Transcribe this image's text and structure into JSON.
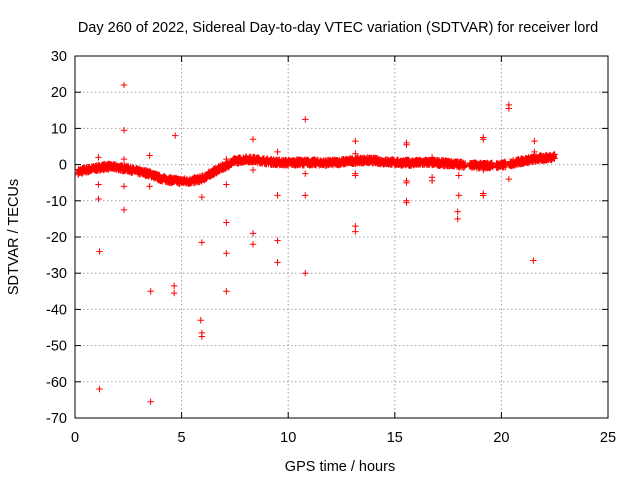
{
  "chart_data": {
    "type": "scatter",
    "title": "Day 260 of 2022, Sidereal Day-to-day VTEC variation (SDTVAR) for receiver lord",
    "xlabel": "GPS time / hours",
    "ylabel": "SDTVAR / TECUs",
    "xlim": [
      0,
      25
    ],
    "ylim": [
      -70,
      30
    ],
    "xticks": [
      0,
      5,
      10,
      15,
      20,
      25
    ],
    "yticks": [
      -70,
      -60,
      -50,
      -40,
      -30,
      -20,
      -10,
      0,
      10,
      20,
      30
    ],
    "grid": true,
    "marker": "+",
    "color": "#ff0000",
    "series": [
      {
        "name": "SDTVAR",
        "trend": [
          [
            0.15,
            -2.0
          ],
          [
            0.5,
            -1.5
          ],
          [
            1.0,
            -1.0
          ],
          [
            1.5,
            -0.5
          ],
          [
            2.0,
            -0.8
          ],
          [
            2.5,
            -1.2
          ],
          [
            3.0,
            -2.0
          ],
          [
            3.5,
            -2.5
          ],
          [
            4.0,
            -3.8
          ],
          [
            4.5,
            -4.3
          ],
          [
            5.0,
            -4.6
          ],
          [
            5.5,
            -4.5
          ],
          [
            6.0,
            -3.8
          ],
          [
            6.5,
            -2.0
          ],
          [
            7.0,
            -0.5
          ],
          [
            7.5,
            1.0
          ],
          [
            8.0,
            1.5
          ],
          [
            8.5,
            1.3
          ],
          [
            9.0,
            0.9
          ],
          [
            9.5,
            0.6
          ],
          [
            10.0,
            0.5
          ],
          [
            10.5,
            0.6
          ],
          [
            11.0,
            0.6
          ],
          [
            11.5,
            0.5
          ],
          [
            12.0,
            0.5
          ],
          [
            12.5,
            0.7
          ],
          [
            13.0,
            1.0
          ],
          [
            13.5,
            1.2
          ],
          [
            14.0,
            1.1
          ],
          [
            14.5,
            0.8
          ],
          [
            15.0,
            0.6
          ],
          [
            15.5,
            0.5
          ],
          [
            16.0,
            0.5
          ],
          [
            16.5,
            0.6
          ],
          [
            17.0,
            0.5
          ],
          [
            17.5,
            0.3
          ],
          [
            18.0,
            0.1
          ],
          [
            18.5,
            -0.1
          ],
          [
            19.0,
            -0.3
          ],
          [
            19.5,
            -0.2
          ],
          [
            20.0,
            -0.2
          ],
          [
            20.5,
            0.4
          ],
          [
            21.0,
            1.0
          ],
          [
            21.5,
            1.5
          ],
          [
            22.0,
            1.8
          ],
          [
            22.5,
            2.2
          ]
        ],
        "gaps": [
          [
            18.3,
            18.5
          ],
          [
            19.6,
            19.75
          ],
          [
            20.2,
            20.35
          ]
        ],
        "outliers": [
          [
            1.1,
            2.0
          ],
          [
            1.1,
            -5.5
          ],
          [
            1.1,
            -9.5
          ],
          [
            1.15,
            -24.0
          ],
          [
            1.15,
            -62.0
          ],
          [
            2.3,
            22.0
          ],
          [
            2.3,
            9.5
          ],
          [
            2.3,
            1.5
          ],
          [
            2.3,
            -6.0
          ],
          [
            2.3,
            -12.5
          ],
          [
            3.5,
            2.5
          ],
          [
            3.5,
            -6.0
          ],
          [
            3.55,
            -35.0
          ],
          [
            3.55,
            -65.5
          ],
          [
            4.7,
            8.0
          ],
          [
            4.65,
            -33.5
          ],
          [
            4.65,
            -35.5
          ],
          [
            5.95,
            -9.0
          ],
          [
            5.95,
            -21.5
          ],
          [
            5.9,
            -43.0
          ],
          [
            5.95,
            -46.5
          ],
          [
            5.95,
            -47.5
          ],
          [
            7.1,
            1.5
          ],
          [
            7.1,
            -5.5
          ],
          [
            7.1,
            -16.0
          ],
          [
            7.1,
            -24.5
          ],
          [
            7.1,
            -35.0
          ],
          [
            8.35,
            7.0
          ],
          [
            8.35,
            -1.5
          ],
          [
            8.35,
            -19.0
          ],
          [
            8.35,
            -22.0
          ],
          [
            9.5,
            3.5
          ],
          [
            9.5,
            -8.5
          ],
          [
            9.5,
            -21.0
          ],
          [
            9.5,
            -27.0
          ],
          [
            10.8,
            12.5
          ],
          [
            10.8,
            -2.5
          ],
          [
            10.8,
            -8.5
          ],
          [
            10.8,
            -30.0
          ],
          [
            13.15,
            6.5
          ],
          [
            13.15,
            3.0
          ],
          [
            13.15,
            -2.5
          ],
          [
            13.15,
            -3.0
          ],
          [
            13.15,
            -17.0
          ],
          [
            13.15,
            -18.5
          ],
          [
            15.55,
            6.0
          ],
          [
            15.55,
            5.5
          ],
          [
            15.55,
            -4.5
          ],
          [
            15.55,
            -5.0
          ],
          [
            15.55,
            -10.0
          ],
          [
            15.55,
            -10.5
          ],
          [
            16.75,
            2.0
          ],
          [
            16.75,
            -3.5
          ],
          [
            16.75,
            -4.5
          ],
          [
            18.0,
            -3.0
          ],
          [
            18.0,
            -8.5
          ],
          [
            17.95,
            -13.0
          ],
          [
            17.95,
            -15.0
          ],
          [
            19.15,
            7.5
          ],
          [
            19.15,
            7.0
          ],
          [
            19.15,
            -8.0
          ],
          [
            19.15,
            -8.5
          ],
          [
            19.15,
            -1.5
          ],
          [
            20.35,
            16.5
          ],
          [
            20.35,
            15.5
          ],
          [
            20.35,
            -4.0
          ],
          [
            21.55,
            6.5
          ],
          [
            21.55,
            3.5
          ],
          [
            21.5,
            -26.5
          ]
        ]
      }
    ]
  }
}
